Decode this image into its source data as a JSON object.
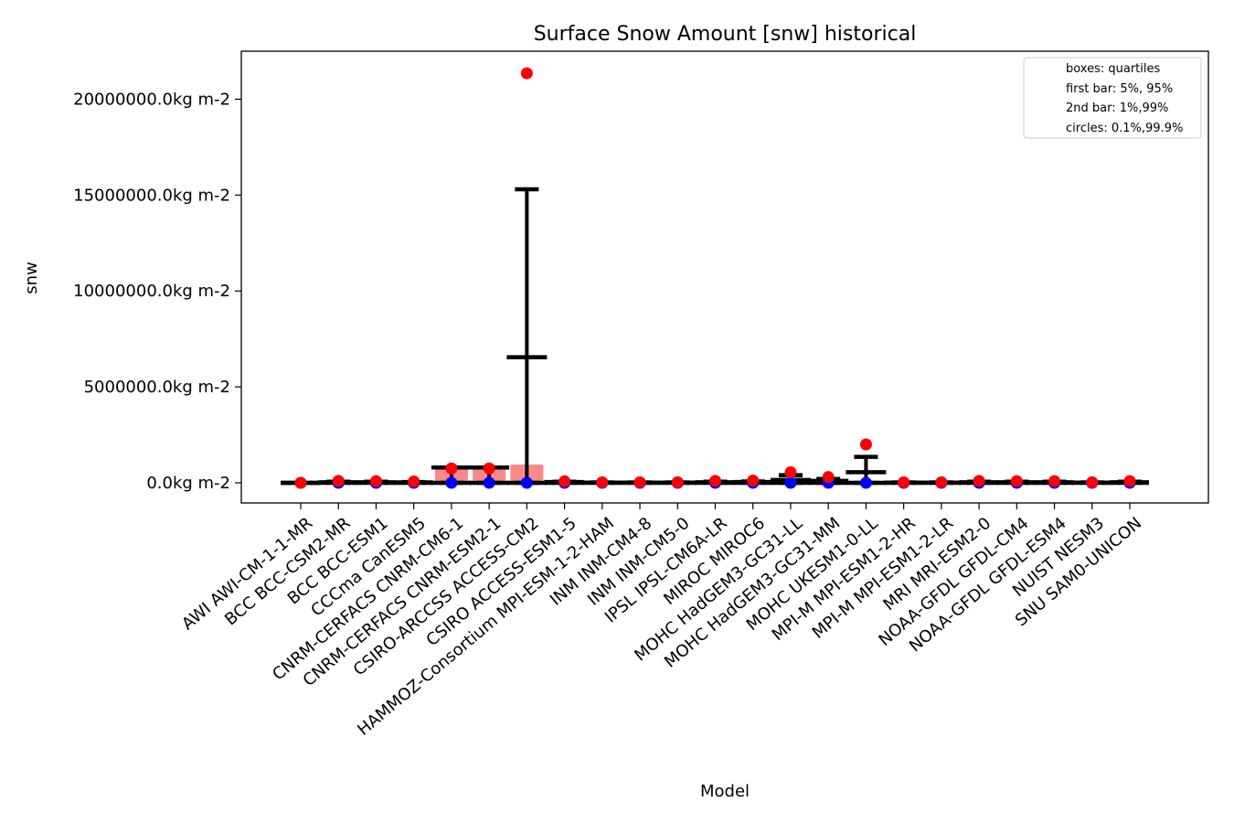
{
  "chart_data": {
    "type": "box",
    "title": "Surface Snow Amount [snw] historical",
    "xlabel": "Model",
    "ylabel": "snw",
    "y_unit_suffix": "kg m-2",
    "ylim": [
      -1050000,
      22500000
    ],
    "yticks": [
      0,
      5000000,
      10000000,
      15000000,
      20000000
    ],
    "ytick_labels": [
      "0.0kg m-2",
      "5000000.0kg m-2",
      "10000000.0kg m-2",
      "15000000.0kg m-2",
      "20000000.0kg m-2"
    ],
    "legend": {
      "placement": "top-right",
      "entries": [
        "boxes: quartiles",
        "first bar: 5%, 95%",
        "2nd bar: 1%,99%",
        "circles: 0.1%,99.9%"
      ]
    },
    "colors": {
      "box": "#f88a8a",
      "bar": "#000000",
      "high_circle": "#ff0000",
      "low_circle": "#0000ff"
    },
    "models": [
      {
        "name": "AWI AWI-CM-1-1-MR",
        "q1": 0,
        "q3": 0,
        "p5": 0,
        "p95": 0,
        "p1": 0,
        "p99": 0,
        "c_low": 0,
        "c_high": 0
      },
      {
        "name": "BCC BCC-CSM2-MR",
        "q1": 0,
        "q3": 10000,
        "p5": 0,
        "p95": 30000,
        "p1": 0,
        "p99": 60000,
        "c_low": 0,
        "c_high": 100000
      },
      {
        "name": "BCC BCC-ESM1",
        "q1": 0,
        "q3": 10000,
        "p5": 0,
        "p95": 30000,
        "p1": 0,
        "p99": 60000,
        "c_low": 0,
        "c_high": 90000
      },
      {
        "name": "CCCma CanESM5",
        "q1": 0,
        "q3": 10000,
        "p5": 0,
        "p95": 20000,
        "p1": 0,
        "p99": 40000,
        "c_low": 0,
        "c_high": 70000
      },
      {
        "name": "CNRM-CERFACS CNRM-CM6-1",
        "q1": 0,
        "q3": 800000,
        "p5": 0,
        "p95": 800000,
        "p1": 0,
        "p99": 800000,
        "c_low": 0,
        "c_high": 750000
      },
      {
        "name": "CNRM-CERFACS CNRM-ESM2-1",
        "q1": 0,
        "q3": 800000,
        "p5": 0,
        "p95": 800000,
        "p1": 0,
        "p99": 800000,
        "c_low": 0,
        "c_high": 750000
      },
      {
        "name": "CSIRO-ARCCSS ACCESS-CM2",
        "q1": 0,
        "q3": 950000,
        "p5": 0,
        "p95": 6550000,
        "p1": 0,
        "p99": 15300000,
        "c_low": 0,
        "c_high": 21350000
      },
      {
        "name": "CSIRO ACCESS-ESM1-5",
        "q1": 0,
        "q3": 20000,
        "p5": 0,
        "p95": 40000,
        "p1": 0,
        "p99": 60000,
        "c_low": 0,
        "c_high": 80000
      },
      {
        "name": "HAMMOZ-Consortium MPI-ESM-1-2-HAM",
        "q1": 0,
        "q3": 5000,
        "p5": 0,
        "p95": 10000,
        "p1": 0,
        "p99": 20000,
        "c_low": 0,
        "c_high": 30000
      },
      {
        "name": "INM INM-CM4-8",
        "q1": 0,
        "q3": 5000,
        "p5": 0,
        "p95": 10000,
        "p1": 0,
        "p99": 20000,
        "c_low": 0,
        "c_high": 30000
      },
      {
        "name": "INM INM-CM5-0",
        "q1": 0,
        "q3": 5000,
        "p5": 0,
        "p95": 10000,
        "p1": 0,
        "p99": 20000,
        "c_low": 0,
        "c_high": 30000
      },
      {
        "name": "IPSL IPSL-CM6A-LR",
        "q1": 0,
        "q3": 10000,
        "p5": 0,
        "p95": 30000,
        "p1": 0,
        "p99": 60000,
        "c_low": 0,
        "c_high": 100000
      },
      {
        "name": "MIROC MIROC6",
        "q1": 0,
        "q3": 10000,
        "p5": 0,
        "p95": 40000,
        "p1": 0,
        "p99": 70000,
        "c_low": 0,
        "c_high": 120000
      },
      {
        "name": "MOHC HadGEM3-GC31-LL",
        "q1": 0,
        "q3": 30000,
        "p5": 0,
        "p95": 150000,
        "p1": 0,
        "p99": 400000,
        "c_low": 0,
        "c_high": 550000
      },
      {
        "name": "MOHC HadGEM3-GC31-MM",
        "q1": 0,
        "q3": 20000,
        "p5": 0,
        "p95": 100000,
        "p1": 0,
        "p99": 200000,
        "c_low": 0,
        "c_high": 300000
      },
      {
        "name": "MOHC UKESM1-0-LL",
        "q1": 0,
        "q3": 20000,
        "p5": 0,
        "p95": 550000,
        "p1": 0,
        "p99": 1350000,
        "c_low": 0,
        "c_high": 2000000
      },
      {
        "name": "MPI-M MPI-ESM1-2-HR",
        "q1": 0,
        "q3": 5000,
        "p5": 0,
        "p95": 10000,
        "p1": 0,
        "p99": 20000,
        "c_low": 0,
        "c_high": 30000
      },
      {
        "name": "MPI-M MPI-ESM1-2-LR",
        "q1": 0,
        "q3": 5000,
        "p5": 0,
        "p95": 10000,
        "p1": 0,
        "p99": 20000,
        "c_low": 0,
        "c_high": 30000
      },
      {
        "name": "MRI MRI-ESM2-0",
        "q1": 0,
        "q3": 10000,
        "p5": 0,
        "p95": 30000,
        "p1": 0,
        "p99": 60000,
        "c_low": 0,
        "c_high": 100000
      },
      {
        "name": "NOAA-GFDL GFDL-CM4",
        "q1": 0,
        "q3": 10000,
        "p5": 0,
        "p95": 30000,
        "p1": 0,
        "p99": 60000,
        "c_low": 0,
        "c_high": 90000
      },
      {
        "name": "NOAA-GFDL GFDL-ESM4",
        "q1": 0,
        "q3": 10000,
        "p5": 0,
        "p95": 30000,
        "p1": 0,
        "p99": 60000,
        "c_low": 0,
        "c_high": 90000
      },
      {
        "name": "NUIST NESM3",
        "q1": 0,
        "q3": 5000,
        "p5": 0,
        "p95": 10000,
        "p1": 0,
        "p99": 20000,
        "c_low": 0,
        "c_high": 30000
      },
      {
        "name": "SNU SAM0-UNICON",
        "q1": 0,
        "q3": 10000,
        "p5": 0,
        "p95": 30000,
        "p1": 0,
        "p99": 60000,
        "c_low": 0,
        "c_high": 90000
      }
    ]
  }
}
